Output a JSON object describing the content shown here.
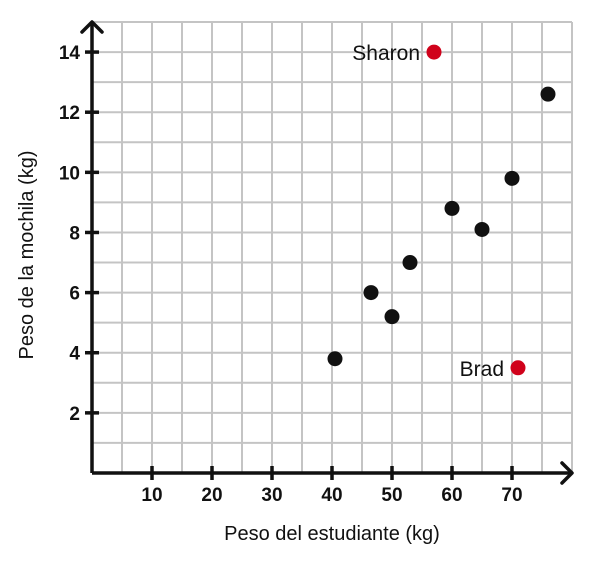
{
  "chart_data": {
    "type": "scatter",
    "title": "",
    "xlabel": "Peso del estudiante (kg)",
    "ylabel": "Peso de la mochila (kg)",
    "xlim": [
      0,
      80
    ],
    "ylim": [
      0,
      15
    ],
    "x_ticks": [
      10,
      20,
      30,
      40,
      50,
      60,
      70
    ],
    "y_ticks": [
      2,
      4,
      6,
      8,
      10,
      12,
      14
    ],
    "grid": true,
    "grid_step_x": 5,
    "grid_step_y": 1,
    "series": [
      {
        "color": "#111111",
        "points": [
          {
            "x": 40.5,
            "y": 3.8
          },
          {
            "x": 46.5,
            "y": 6.0
          },
          {
            "x": 50,
            "y": 5.2
          },
          {
            "x": 53,
            "y": 7.0
          },
          {
            "x": 60,
            "y": 8.8
          },
          {
            "x": 65,
            "y": 8.1
          },
          {
            "x": 70,
            "y": 9.8
          },
          {
            "x": 76,
            "y": 12.6
          }
        ]
      },
      {
        "color": "#d0021b",
        "points": [
          {
            "x": 57,
            "y": 14.0,
            "label": "Sharon"
          },
          {
            "x": 71,
            "y": 3.5,
            "label": "Brad"
          }
        ]
      }
    ]
  }
}
